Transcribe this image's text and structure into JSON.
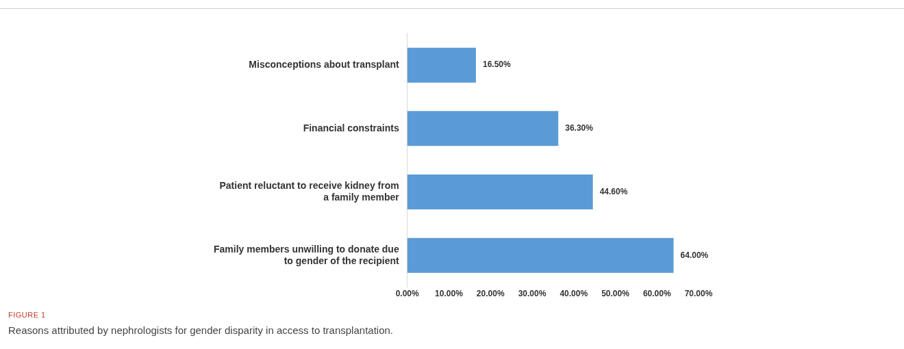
{
  "chart_data": {
    "type": "bar",
    "orientation": "horizontal",
    "title": "FIGURE 1",
    "subtitle": "Reasons attributed by nephrologists for gender disparity in access to transplantation.",
    "categories": [
      "Misconceptions about transplant",
      "Financial constraints",
      "Patient reluctant to receive kidney from a family member",
      "Family members unwilling to donate due to gender of the recipient"
    ],
    "values": [
      16.5,
      36.3,
      44.6,
      64.0
    ],
    "value_labels": [
      "16.50%",
      "36.30%",
      "44.60%",
      "64.00%"
    ],
    "color": "#5b9bd5",
    "xlim": [
      0,
      70
    ],
    "xticks": [
      {
        "value": 0,
        "label": "0.00%"
      },
      {
        "value": 10,
        "label": "10.00%"
      },
      {
        "value": 20,
        "label": "20.00%"
      },
      {
        "value": 30,
        "label": "30.00%"
      },
      {
        "value": 40,
        "label": "40.00%"
      },
      {
        "value": 50,
        "label": "50.00%"
      },
      {
        "value": 60,
        "label": "60.00%"
      },
      {
        "value": 70,
        "label": "70.00%"
      }
    ],
    "grid": false,
    "legend": false
  }
}
